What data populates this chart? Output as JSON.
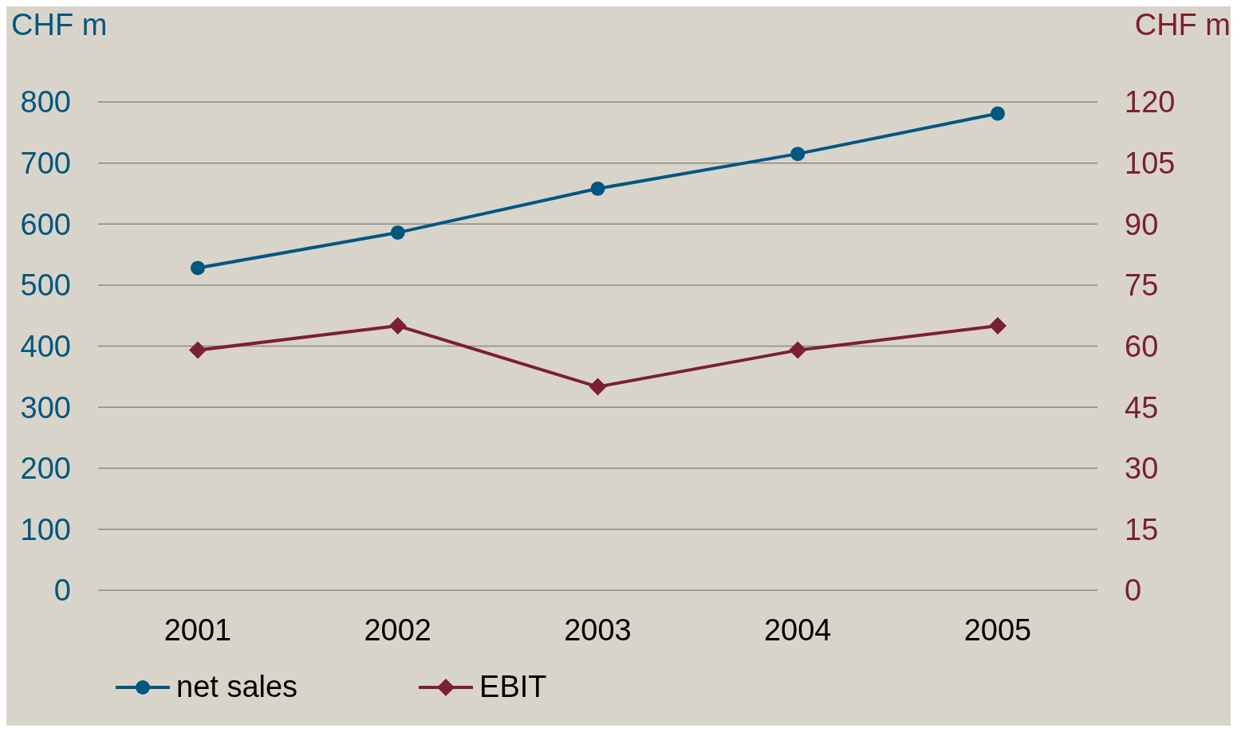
{
  "chart_data": {
    "type": "line",
    "categories": [
      "2001",
      "2002",
      "2003",
      "2004",
      "2005"
    ],
    "ylabel": "CHF m",
    "y2label": "CHF m",
    "series": [
      {
        "name": "net sales",
        "color": "#005780",
        "values": [
          528,
          586,
          658,
          715,
          781
        ],
        "marker": "circle"
      },
      {
        "name": "EBIT",
        "color": "#7b2032",
        "values": [
          59,
          65,
          50,
          59,
          65
        ],
        "axis": "y2",
        "marker": "diamond"
      }
    ],
    "ylim": [
      0,
      800
    ],
    "yticks": [
      0,
      100,
      200,
      300,
      400,
      500,
      600,
      700,
      800
    ],
    "y2lim": [
      0,
      120
    ],
    "y2ticks": [
      0,
      15,
      30,
      45,
      60,
      75,
      90,
      105,
      120
    ],
    "grid": "y",
    "legend": "bottom left",
    "line_style": "solid"
  }
}
